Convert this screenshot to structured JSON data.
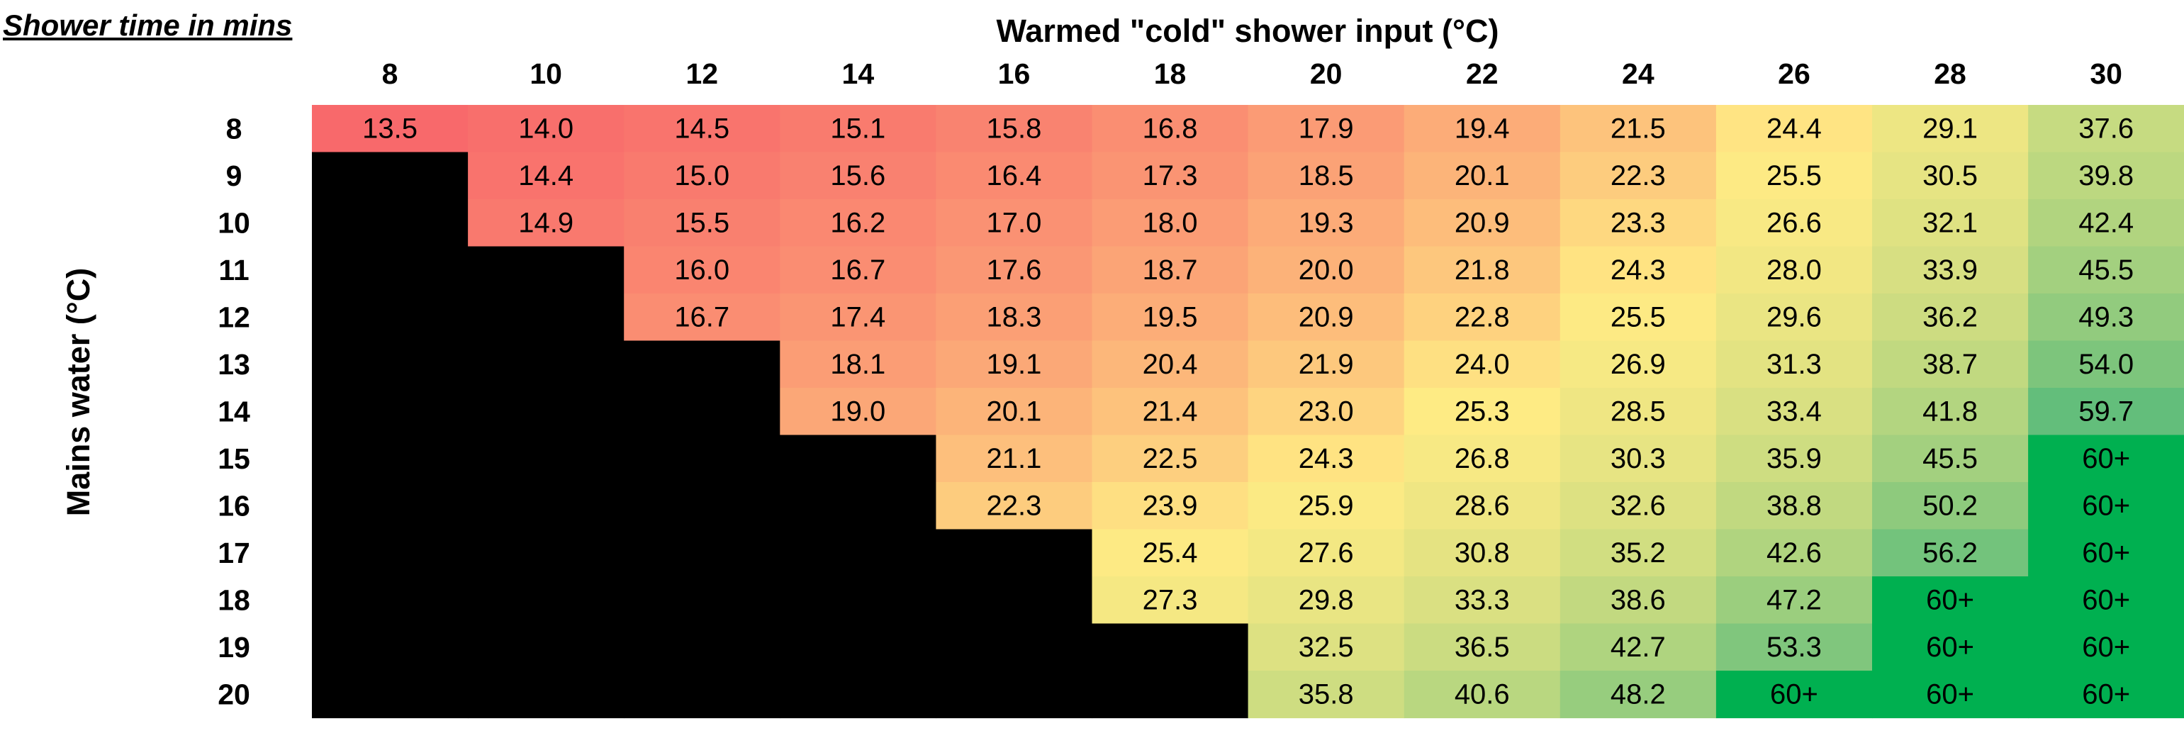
{
  "corner_note": "Shower time in mins",
  "chart_data": {
    "type": "heatmap",
    "title": "",
    "xlabel": "Warmed \"cold\" shower input (°C)",
    "ylabel": "Mains water (°C)",
    "x_axis_position": "top",
    "legend": "none",
    "x": [
      "8",
      "10",
      "12",
      "14",
      "16",
      "18",
      "20",
      "22",
      "24",
      "26",
      "28",
      "30"
    ],
    "y": [
      "8",
      "9",
      "10",
      "11",
      "12",
      "13",
      "14",
      "15",
      "16",
      "17",
      "18",
      "19",
      "20"
    ],
    "cells": [
      [
        "13.5",
        "14.0",
        "14.5",
        "15.1",
        "15.8",
        "16.8",
        "17.9",
        "19.4",
        "21.5",
        "24.4",
        "29.1",
        "37.6"
      ],
      [
        null,
        "14.4",
        "15.0",
        "15.6",
        "16.4",
        "17.3",
        "18.5",
        "20.1",
        "22.3",
        "25.5",
        "30.5",
        "39.8"
      ],
      [
        null,
        "14.9",
        "15.5",
        "16.2",
        "17.0",
        "18.0",
        "19.3",
        "20.9",
        "23.3",
        "26.6",
        "32.1",
        "42.4"
      ],
      [
        null,
        null,
        "16.0",
        "16.7",
        "17.6",
        "18.7",
        "20.0",
        "21.8",
        "24.3",
        "28.0",
        "33.9",
        "45.5"
      ],
      [
        null,
        null,
        "16.7",
        "17.4",
        "18.3",
        "19.5",
        "20.9",
        "22.8",
        "25.5",
        "29.6",
        "36.2",
        "49.3"
      ],
      [
        null,
        null,
        null,
        "18.1",
        "19.1",
        "20.4",
        "21.9",
        "24.0",
        "26.9",
        "31.3",
        "38.7",
        "54.0"
      ],
      [
        null,
        null,
        null,
        "19.0",
        "20.1",
        "21.4",
        "23.0",
        "25.3",
        "28.5",
        "33.4",
        "41.8",
        "59.7"
      ],
      [
        null,
        null,
        null,
        null,
        "21.1",
        "22.5",
        "24.3",
        "26.8",
        "30.3",
        "35.9",
        "45.5",
        "60+"
      ],
      [
        null,
        null,
        null,
        null,
        "22.3",
        "23.9",
        "25.9",
        "28.6",
        "32.6",
        "38.8",
        "50.2",
        "60+"
      ],
      [
        null,
        null,
        null,
        null,
        null,
        "25.4",
        "27.6",
        "30.8",
        "35.2",
        "42.6",
        "56.2",
        "60+"
      ],
      [
        null,
        null,
        null,
        null,
        null,
        "27.3",
        "29.8",
        "33.3",
        "38.6",
        "47.2",
        "60+",
        "60+"
      ],
      [
        null,
        null,
        null,
        null,
        null,
        null,
        "32.5",
        "36.5",
        "42.7",
        "53.3",
        "60+",
        "60+"
      ],
      [
        null,
        null,
        null,
        null,
        null,
        null,
        "35.8",
        "40.6",
        "48.2",
        "60+",
        "60+",
        "60+"
      ]
    ],
    "color_scale": {
      "low": "#F8696B",
      "mid": "#FFEB84",
      "high": "#63BE7B",
      "overflow": "#00B050",
      "empty": "#000000"
    }
  }
}
